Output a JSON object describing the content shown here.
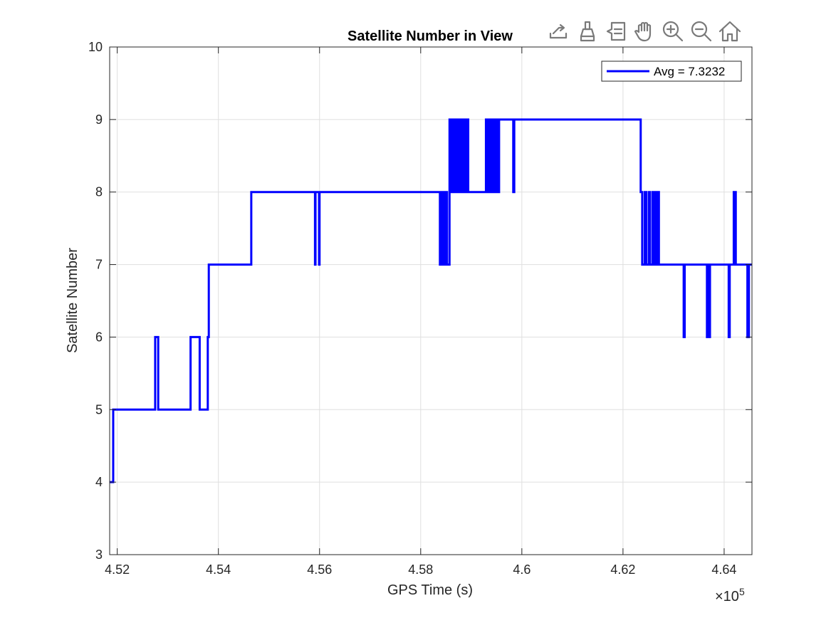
{
  "toolbar": {
    "items": [
      {
        "icon": "export-icon"
      },
      {
        "icon": "brush-icon"
      },
      {
        "icon": "datatip-icon"
      },
      {
        "icon": "pan-hand-icon"
      },
      {
        "icon": "zoom-in-icon"
      },
      {
        "icon": "zoom-out-icon"
      },
      {
        "icon": "home-icon"
      }
    ]
  },
  "chart_data": {
    "type": "line",
    "title": "Satellite Number in View",
    "xlabel": "GPS Time (s)",
    "ylabel": "Satellite Number",
    "x_exponent_label": "×10",
    "x_exponent_power": "5",
    "xlim": [
      4.5185,
      4.6455
    ],
    "ylim": [
      3,
      10
    ],
    "xticks": [
      "4.52",
      "4.54",
      "4.56",
      "4.58",
      "4.6",
      "4.62",
      "4.64"
    ],
    "xtick_values": [
      4.52,
      4.54,
      4.56,
      4.58,
      4.6,
      4.62,
      4.64
    ],
    "yticks": [
      "3",
      "4",
      "5",
      "6",
      "7",
      "8",
      "9",
      "10"
    ],
    "ytick_values": [
      3,
      4,
      5,
      6,
      7,
      8,
      9,
      10
    ],
    "grid": true,
    "legend_position": "top-right",
    "color": "#0000ff",
    "series": [
      {
        "name": "Avg = 7.3232",
        "x": [
          4.5185,
          4.5192,
          4.5192,
          4.5275,
          4.5275,
          4.5281,
          4.5281,
          4.5283,
          4.5283,
          4.5345,
          4.5345,
          4.5363,
          4.5363,
          4.5379,
          4.5379,
          4.5381,
          4.5381,
          4.5383,
          4.5383,
          4.5465,
          4.5465,
          4.5591,
          4.5591,
          4.5592,
          4.5592,
          4.5599,
          4.5599,
          4.56,
          4.56,
          4.5838,
          4.5838,
          4.584,
          4.584,
          4.5842,
          4.5842,
          4.5844,
          4.5844,
          4.5846,
          4.5846,
          4.5848,
          4.5848,
          4.5852,
          4.5852,
          4.5857,
          4.5857,
          4.5859,
          4.5859,
          4.5861,
          4.5861,
          4.5864,
          4.5864,
          4.5866,
          4.5866,
          4.5869,
          4.5869,
          4.5872,
          4.5872,
          4.5874,
          4.5874,
          4.5876,
          4.5876,
          4.5879,
          4.5879,
          4.5881,
          4.5881,
          4.5884,
          4.5884,
          4.5886,
          4.5886,
          4.5889,
          4.5889,
          4.5891,
          4.5891,
          4.5894,
          4.5894,
          4.5897,
          4.5897,
          4.5929,
          4.5929,
          4.5932,
          4.5932,
          4.5934,
          4.5934,
          4.5937,
          4.5937,
          4.5939,
          4.5939,
          4.5942,
          4.5942,
          4.5944,
          4.5944,
          4.5947,
          4.5947,
          4.5949,
          4.5949,
          4.5952,
          4.5952,
          4.5955,
          4.5955,
          4.5983,
          4.5983,
          4.5985,
          4.5985,
          4.6235,
          4.6235,
          4.6238,
          4.6238,
          4.6243,
          4.6243,
          4.6246,
          4.6246,
          4.6251,
          4.6251,
          4.6253,
          4.6253,
          4.6258,
          4.6258,
          4.6261,
          4.6261,
          4.6264,
          4.6264,
          4.6266,
          4.6266,
          4.6269,
          4.6269,
          4.6271,
          4.6271,
          4.6273,
          4.6273,
          4.632,
          4.632,
          4.6322,
          4.6322,
          4.6366,
          4.6366,
          4.6368,
          4.6368,
          4.637,
          4.637,
          4.6372,
          4.6372,
          4.6409,
          4.6409,
          4.6411,
          4.6411,
          4.6419,
          4.6419,
          4.6423,
          4.6423,
          4.6446,
          4.6446,
          4.6449,
          4.6449,
          4.6455
        ],
        "y": [
          4,
          4,
          5,
          5,
          6,
          6,
          5,
          5,
          5,
          5,
          6,
          6,
          5,
          5,
          6,
          6,
          7,
          7,
          7,
          7,
          8,
          8,
          7,
          7,
          8,
          8,
          7,
          7,
          8,
          8,
          7,
          7,
          8,
          8,
          7,
          7,
          8,
          8,
          7,
          7,
          8,
          8,
          7,
          7,
          9,
          9,
          8,
          8,
          9,
          9,
          8,
          8,
          9,
          9,
          8,
          8,
          9,
          9,
          8,
          8,
          9,
          9,
          8,
          8,
          9,
          9,
          8,
          8,
          9,
          9,
          8,
          8,
          9,
          9,
          8,
          8,
          8,
          8,
          9,
          9,
          8,
          8,
          9,
          9,
          8,
          8,
          9,
          9,
          8,
          8,
          9,
          9,
          8,
          8,
          9,
          9,
          8,
          8,
          9,
          9,
          8,
          8,
          9,
          9,
          8,
          8,
          7,
          7,
          8,
          8,
          7,
          7,
          8,
          8,
          7,
          7,
          8,
          8,
          7,
          7,
          8,
          8,
          7,
          7,
          8,
          8,
          7,
          7,
          7,
          7,
          6,
          6,
          7,
          7,
          6,
          6,
          7,
          7,
          6,
          6,
          7,
          7,
          6,
          6,
          7,
          7,
          8,
          8,
          7,
          7,
          6,
          6,
          7,
          7
        ]
      }
    ]
  }
}
